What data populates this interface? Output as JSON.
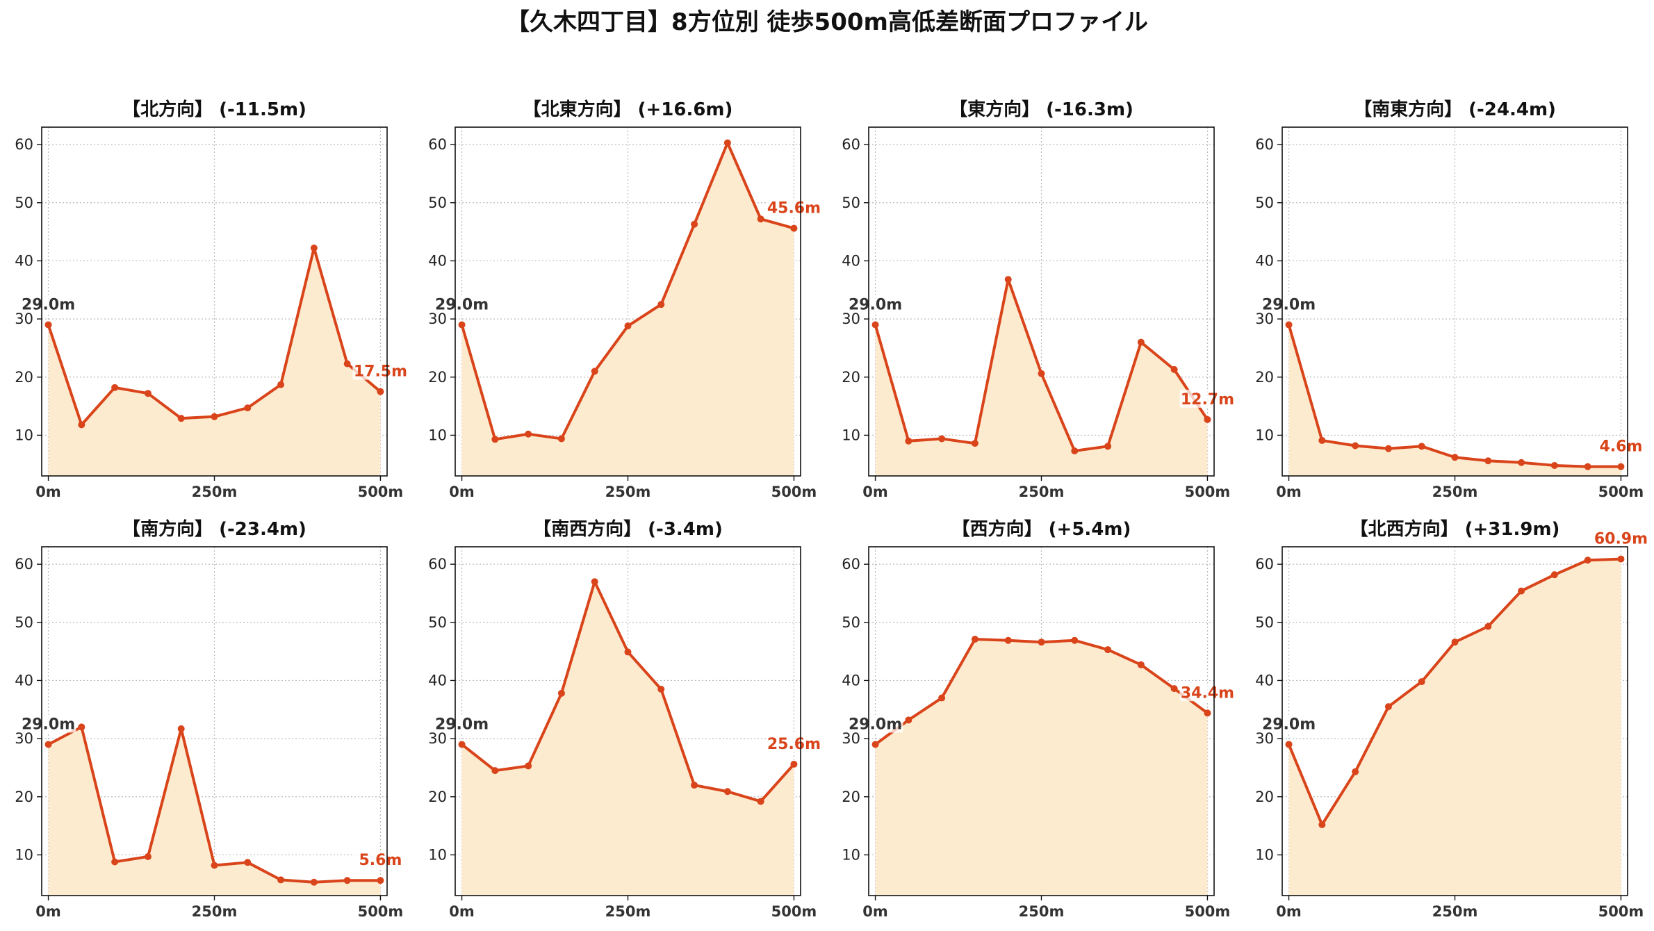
{
  "figure": {
    "title": "【久木四丁目】8方位別 徒歩500m高低差断面プロファイル"
  },
  "style": {
    "line_color": "#d9441a",
    "fill_color": "#fdebd0",
    "start_label_color": "#333333",
    "end_label_color": "#d9441a",
    "grid_color": "#bbbbbb"
  },
  "chart_data": [
    {
      "type": "area",
      "title": "【北方向】 (-11.5m)",
      "x": [
        0,
        50,
        100,
        150,
        200,
        250,
        300,
        350,
        400,
        450,
        500
      ],
      "y": [
        29.0,
        11.8,
        18.2,
        17.2,
        12.9,
        13.2,
        14.7,
        18.7,
        42.2,
        22.3,
        17.5
      ],
      "xticks": [
        "0m",
        "250m",
        "500m"
      ],
      "yticks": [
        "10",
        "20",
        "30",
        "40",
        "50",
        "60"
      ],
      "xlim": [
        -10,
        510
      ],
      "ylim": [
        3,
        63
      ],
      "grid": true,
      "start_label": "29.0m",
      "end_label": "17.5m"
    },
    {
      "type": "area",
      "title": "【北東方向】 (+16.6m)",
      "x": [
        0,
        50,
        100,
        150,
        200,
        250,
        300,
        350,
        400,
        450,
        500
      ],
      "y": [
        29.0,
        9.3,
        10.2,
        9.4,
        21.0,
        28.8,
        32.5,
        46.3,
        60.3,
        47.2,
        45.6
      ],
      "xticks": [
        "0m",
        "250m",
        "500m"
      ],
      "yticks": [
        "10",
        "20",
        "30",
        "40",
        "50",
        "60"
      ],
      "xlim": [
        -10,
        510
      ],
      "ylim": [
        3,
        63
      ],
      "grid": true,
      "start_label": "29.0m",
      "end_label": "45.6m"
    },
    {
      "type": "area",
      "title": "【東方向】 (-16.3m)",
      "x": [
        0,
        50,
        100,
        150,
        200,
        250,
        300,
        350,
        400,
        450,
        500
      ],
      "y": [
        29.0,
        9.0,
        9.4,
        8.6,
        36.8,
        20.6,
        7.3,
        8.1,
        26.0,
        21.3,
        12.7
      ],
      "xticks": [
        "0m",
        "250m",
        "500m"
      ],
      "yticks": [
        "10",
        "20",
        "30",
        "40",
        "50",
        "60"
      ],
      "xlim": [
        -10,
        510
      ],
      "ylim": [
        3,
        63
      ],
      "grid": true,
      "start_label": "29.0m",
      "end_label": "12.7m"
    },
    {
      "type": "area",
      "title": "【南東方向】 (-24.4m)",
      "x": [
        0,
        50,
        100,
        150,
        200,
        250,
        300,
        350,
        400,
        450,
        500
      ],
      "y": [
        29.0,
        9.1,
        8.2,
        7.7,
        8.1,
        6.2,
        5.6,
        5.3,
        4.8,
        4.6,
        4.6
      ],
      "xticks": [
        "0m",
        "250m",
        "500m"
      ],
      "yticks": [
        "10",
        "20",
        "30",
        "40",
        "50",
        "60"
      ],
      "xlim": [
        -10,
        510
      ],
      "ylim": [
        3,
        63
      ],
      "grid": true,
      "start_label": "29.0m",
      "end_label": "4.6m"
    },
    {
      "type": "area",
      "title": "【南方向】 (-23.4m)",
      "x": [
        0,
        50,
        100,
        150,
        200,
        250,
        300,
        350,
        400,
        450,
        500
      ],
      "y": [
        29.0,
        32.0,
        8.8,
        9.7,
        31.7,
        8.2,
        8.7,
        5.7,
        5.3,
        5.6,
        5.6
      ],
      "xticks": [
        "0m",
        "250m",
        "500m"
      ],
      "yticks": [
        "10",
        "20",
        "30",
        "40",
        "50",
        "60"
      ],
      "xlim": [
        -10,
        510
      ],
      "ylim": [
        3,
        63
      ],
      "grid": true,
      "start_label": "29.0m",
      "end_label": "5.6m"
    },
    {
      "type": "area",
      "title": "【南西方向】 (-3.4m)",
      "x": [
        0,
        50,
        100,
        150,
        200,
        250,
        300,
        350,
        400,
        450,
        500
      ],
      "y": [
        29.0,
        24.5,
        25.3,
        37.8,
        57.0,
        44.9,
        38.5,
        22.0,
        20.9,
        19.2,
        25.6
      ],
      "xticks": [
        "0m",
        "250m",
        "500m"
      ],
      "yticks": [
        "10",
        "20",
        "30",
        "40",
        "50",
        "60"
      ],
      "xlim": [
        -10,
        510
      ],
      "ylim": [
        3,
        63
      ],
      "grid": true,
      "start_label": "29.0m",
      "end_label": "25.6m"
    },
    {
      "type": "area",
      "title": "【西方向】 (+5.4m)",
      "x": [
        0,
        50,
        100,
        150,
        200,
        250,
        300,
        350,
        400,
        450,
        500
      ],
      "y": [
        29.0,
        33.2,
        37.0,
        47.1,
        46.9,
        46.6,
        46.9,
        45.3,
        42.7,
        38.6,
        34.4
      ],
      "xticks": [
        "0m",
        "250m",
        "500m"
      ],
      "yticks": [
        "10",
        "20",
        "30",
        "40",
        "50",
        "60"
      ],
      "xlim": [
        -10,
        510
      ],
      "ylim": [
        3,
        63
      ],
      "grid": true,
      "start_label": "29.0m",
      "end_label": "34.4m"
    },
    {
      "type": "area",
      "title": "【北西方向】 (+31.9m)",
      "x": [
        0,
        50,
        100,
        150,
        200,
        250,
        300,
        350,
        400,
        450,
        500
      ],
      "y": [
        29.0,
        15.2,
        24.3,
        35.5,
        39.8,
        46.6,
        49.3,
        55.4,
        58.2,
        60.7,
        60.9
      ],
      "xticks": [
        "0m",
        "250m",
        "500m"
      ],
      "yticks": [
        "10",
        "20",
        "30",
        "40",
        "50",
        "60"
      ],
      "xlim": [
        -10,
        510
      ],
      "ylim": [
        3,
        63
      ],
      "grid": true,
      "start_label": "29.0m",
      "end_label": "60.9m"
    }
  ]
}
